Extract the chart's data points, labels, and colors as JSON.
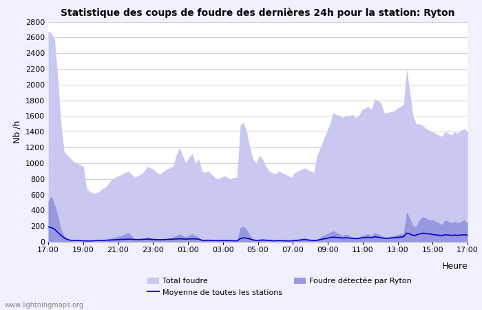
{
  "title": "Statistique des coups de foudre des dernières 24h pour la station: Ryton",
  "xlabel": "Heure",
  "ylabel": "Nb /h",
  "ylim": [
    0,
    2800
  ],
  "yticks": [
    0,
    200,
    400,
    600,
    800,
    1000,
    1200,
    1400,
    1600,
    1800,
    2000,
    2200,
    2400,
    2600,
    2800
  ],
  "xtick_labels": [
    "17:00",
    "19:00",
    "21:00",
    "23:00",
    "01:00",
    "03:00",
    "05:00",
    "07:00",
    "09:00",
    "11:00",
    "13:00",
    "15:00",
    "17:00"
  ],
  "background_color": "#f0f0ff",
  "plot_background": "#ffffff",
  "grid_color": "#ccccdd",
  "color_total": "#c8c8f0",
  "color_ryton": "#9898e0",
  "color_mean": "#0000cc",
  "watermark": "www.lightningmaps.org",
  "total_foudre": [
    2680,
    2650,
    2580,
    2100,
    1500,
    1150,
    1100,
    1060,
    1020,
    1000,
    980,
    960,
    680,
    640,
    620,
    620,
    640,
    680,
    700,
    750,
    800,
    820,
    840,
    860,
    880,
    900,
    860,
    820,
    840,
    860,
    900,
    960,
    940,
    920,
    880,
    860,
    900,
    920,
    940,
    960,
    1100,
    1200,
    1100,
    1000,
    1080,
    1120,
    1000,
    1060,
    900,
    880,
    900,
    860,
    820,
    800,
    820,
    840,
    820,
    800,
    820,
    820,
    1480,
    1520,
    1400,
    1200,
    1050,
    1000,
    1100,
    1050,
    960,
    900,
    880,
    860,
    900,
    880,
    860,
    840,
    820,
    880,
    900,
    920,
    940,
    920,
    900,
    880,
    1100,
    1200,
    1300,
    1400,
    1500,
    1640,
    1620,
    1600,
    1580,
    1600,
    1600,
    1620,
    1580,
    1600,
    1680,
    1700,
    1720,
    1680,
    1820,
    1800,
    1760,
    1640,
    1640,
    1660,
    1660,
    1700,
    1720,
    1740,
    2200,
    1900,
    1600,
    1500,
    1500,
    1480,
    1440,
    1420,
    1400,
    1380,
    1360,
    1340,
    1400,
    1380,
    1360,
    1400,
    1380,
    1420,
    1440,
    1400
  ],
  "ryton": [
    520,
    580,
    480,
    340,
    160,
    80,
    40,
    20,
    10,
    8,
    6,
    5,
    5,
    5,
    5,
    5,
    10,
    20,
    30,
    40,
    50,
    60,
    70,
    80,
    100,
    120,
    80,
    40,
    30,
    40,
    50,
    60,
    50,
    40,
    30,
    20,
    30,
    40,
    50,
    60,
    80,
    100,
    80,
    60,
    80,
    100,
    80,
    60,
    30,
    20,
    30,
    20,
    10,
    10,
    20,
    30,
    20,
    10,
    10,
    10,
    180,
    200,
    160,
    80,
    40,
    20,
    30,
    40,
    30,
    20,
    10,
    10,
    15,
    10,
    10,
    10,
    10,
    20,
    30,
    40,
    50,
    40,
    30,
    20,
    30,
    60,
    80,
    100,
    120,
    140,
    120,
    100,
    80,
    100,
    80,
    60,
    50,
    60,
    80,
    90,
    100,
    80,
    120,
    100,
    80,
    60,
    60,
    70,
    80,
    90,
    100,
    110,
    380,
    300,
    200,
    200,
    280,
    320,
    300,
    280,
    280,
    260,
    240,
    220,
    280,
    260,
    240,
    260,
    240,
    260,
    280,
    240
  ],
  "mean_line": [
    190,
    180,
    160,
    120,
    80,
    50,
    30,
    20,
    18,
    16,
    14,
    12,
    10,
    10,
    12,
    14,
    16,
    18,
    20,
    22,
    24,
    26,
    28,
    30,
    32,
    34,
    32,
    30,
    28,
    30,
    32,
    34,
    32,
    30,
    28,
    26,
    28,
    30,
    32,
    34,
    36,
    38,
    36,
    34,
    36,
    38,
    36,
    34,
    20,
    18,
    20,
    18,
    16,
    14,
    16,
    18,
    16,
    14,
    12,
    12,
    40,
    50,
    46,
    36,
    24,
    18,
    20,
    22,
    20,
    18,
    14,
    12,
    16,
    14,
    12,
    10,
    12,
    16,
    20,
    24,
    28,
    24,
    20,
    16,
    20,
    28,
    36,
    44,
    52,
    60,
    56,
    52,
    48,
    52,
    48,
    44,
    40,
    44,
    50,
    54,
    58,
    52,
    64,
    58,
    52,
    44,
    44,
    48,
    52,
    56,
    60,
    64,
    110,
    100,
    80,
    86,
    100,
    110,
    106,
    100,
    94,
    88,
    84,
    80,
    90,
    86,
    82,
    86,
    82,
    86,
    90,
    84
  ]
}
